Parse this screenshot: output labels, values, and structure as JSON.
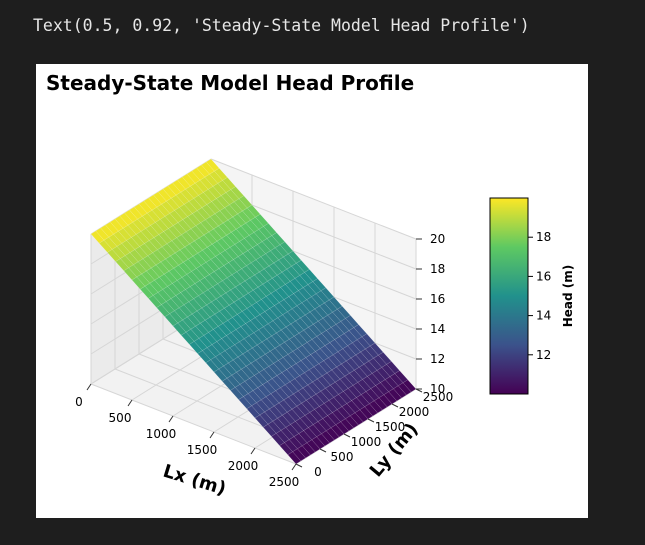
{
  "output": {
    "repr_text": "Text(0.5, 0.92, 'Steady-State Model Head Profile')"
  },
  "chart_data": {
    "type": "surface3d",
    "title": "Steady-State Model Head Profile",
    "xlabel": "Lx (m)",
    "ylabel": "Ly (m)",
    "zlabel": "",
    "colormap": "viridis",
    "x_ticks": [
      "0",
      "500",
      "1000",
      "1500",
      "2000",
      "2500"
    ],
    "y_ticks": [
      "0",
      "500",
      "1000",
      "1500",
      "2000",
      "2500"
    ],
    "z_ticks": [
      "10",
      "12",
      "14",
      "16",
      "18",
      "20"
    ],
    "xlim": [
      0,
      2500
    ],
    "ylim": [
      0,
      2500
    ],
    "zlim": [
      10,
      20
    ],
    "surface": {
      "description_values": "head decreases linearly along Lx from ~20 m at Lx=0 to ~10 m at Lx=2500, nearly constant along Ly",
      "head_at_x0": 20,
      "head_at_xmax": 10
    },
    "colorbar": {
      "label": "Head (m)",
      "ticks": [
        "12",
        "14",
        "16",
        "18"
      ],
      "range": [
        10,
        20
      ]
    },
    "colors": {
      "viridis_low": "#440154",
      "viridis_mid": "#21918c",
      "viridis_high": "#fde725"
    }
  }
}
